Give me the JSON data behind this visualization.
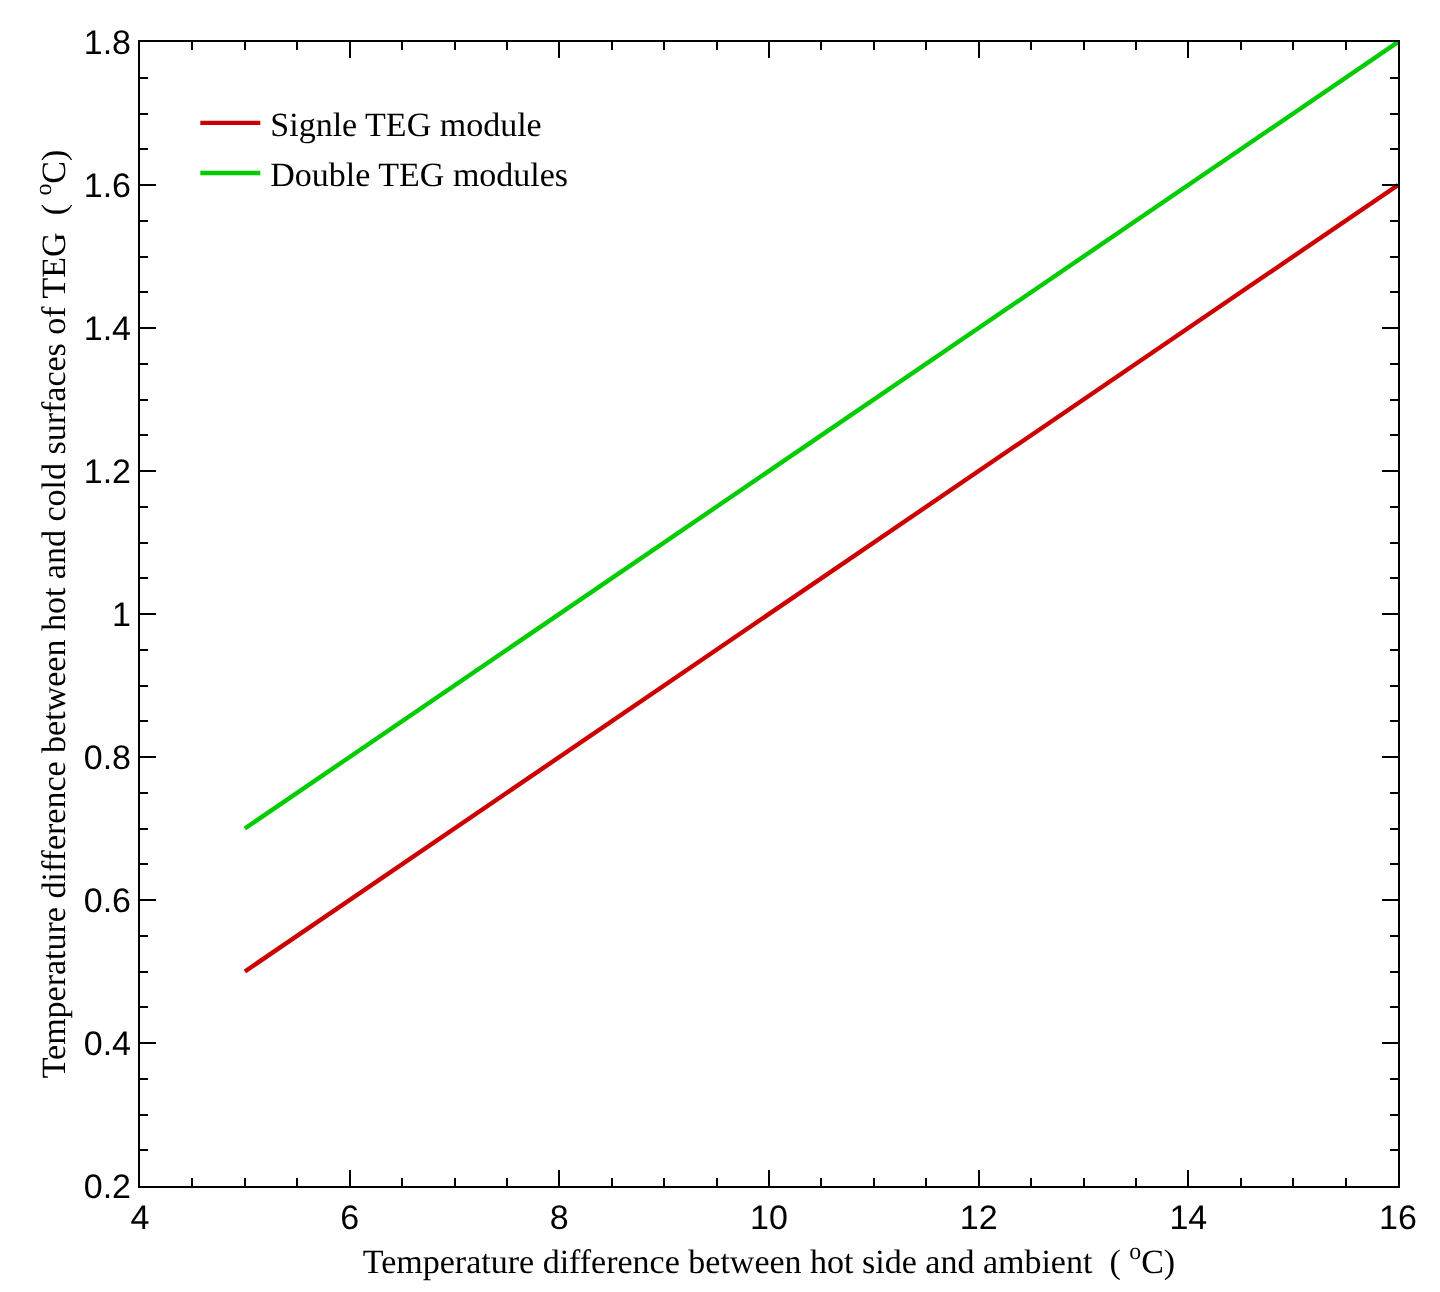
{
  "chart_data": {
    "type": "line",
    "xlabel": "Temperature difference between hot side and ambient  ( $^{o}$C)",
    "ylabel": "Temperature difference between hot and cold surfaces of TEG  ( $^{o}$C)",
    "x": [
      5,
      16
    ],
    "series": [
      {
        "name": "Signle TEG module",
        "color": "#cc0000",
        "values": [
          0.5,
          1.6
        ]
      },
      {
        "name": "Double TEG modules",
        "color": "#00cc00",
        "values": [
          0.7,
          1.8
        ]
      }
    ],
    "xlim": [
      4,
      16
    ],
    "xticks": [
      4,
      6,
      8,
      10,
      12,
      14,
      16
    ],
    "ylim": [
      0.2,
      1.8
    ],
    "yticks": [
      0.2,
      0.4,
      0.6,
      0.8,
      1,
      1.2,
      1.4,
      1.6,
      1.8
    ],
    "legend": "top left",
    "marker": "none",
    "line_style": "solid"
  }
}
